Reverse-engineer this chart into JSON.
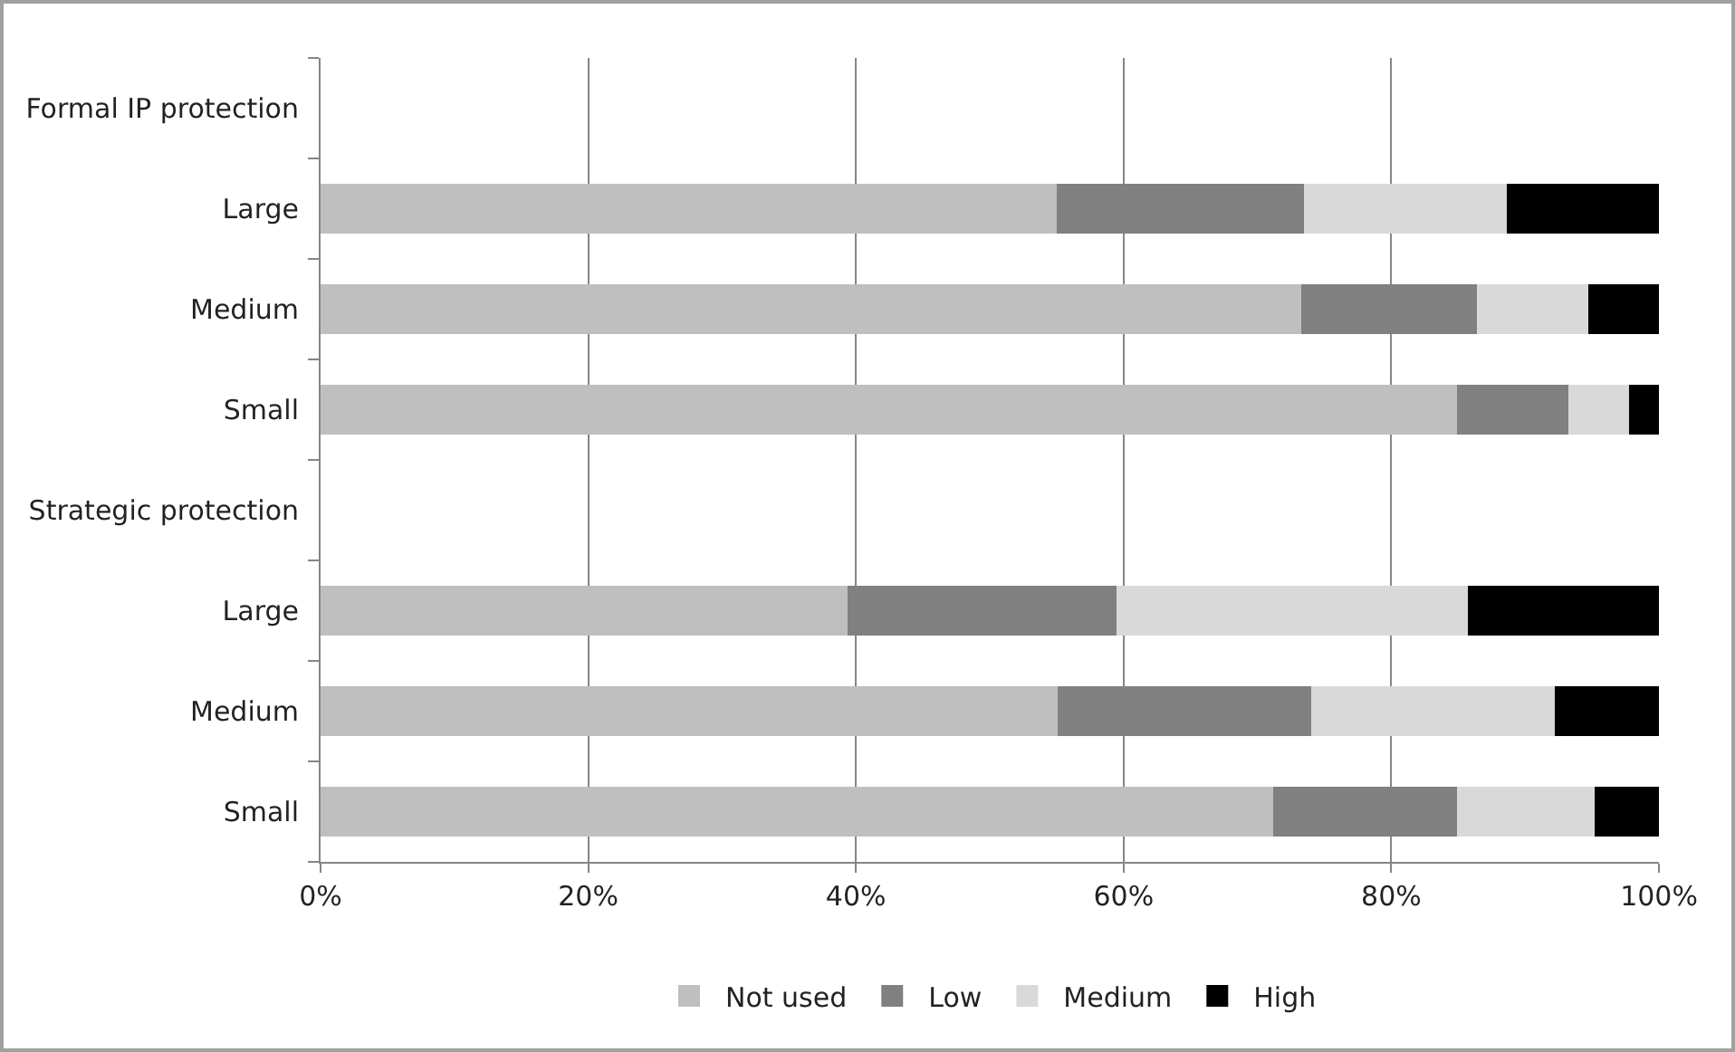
{
  "chart_data": {
    "type": "bar",
    "orientation": "horizontal",
    "stacked": true,
    "categories": [
      "Formal IP protection",
      "Large",
      "Medium",
      "Small",
      "Strategic protection",
      "Large",
      "Medium",
      "Small"
    ],
    "series": [
      {
        "name": "Not used",
        "color": "#bfbfbf",
        "values": [
          null,
          55.0,
          73.3,
          84.9,
          null,
          39.4,
          55.1,
          71.2
        ]
      },
      {
        "name": "Low",
        "color": "#808080",
        "values": [
          null,
          18.5,
          13.1,
          8.3,
          null,
          20.1,
          18.9,
          13.7
        ]
      },
      {
        "name": "Medium",
        "color": "#d9d9d9",
        "values": [
          null,
          15.1,
          8.3,
          4.6,
          null,
          26.2,
          18.2,
          10.3
        ]
      },
      {
        "name": "High",
        "color": "#000000",
        "values": [
          null,
          11.4,
          5.3,
          2.2,
          null,
          14.3,
          7.8,
          4.8
        ]
      }
    ],
    "xlim": [
      0,
      100
    ],
    "xticks": [
      {
        "value": 0,
        "label": "0%"
      },
      {
        "value": 20,
        "label": "20%"
      },
      {
        "value": 40,
        "label": "40%"
      },
      {
        "value": 60,
        "label": "60%"
      },
      {
        "value": 80,
        "label": "80%"
      },
      {
        "value": 100,
        "label": "100%"
      }
    ],
    "grid": "x",
    "legend": "bottom"
  }
}
